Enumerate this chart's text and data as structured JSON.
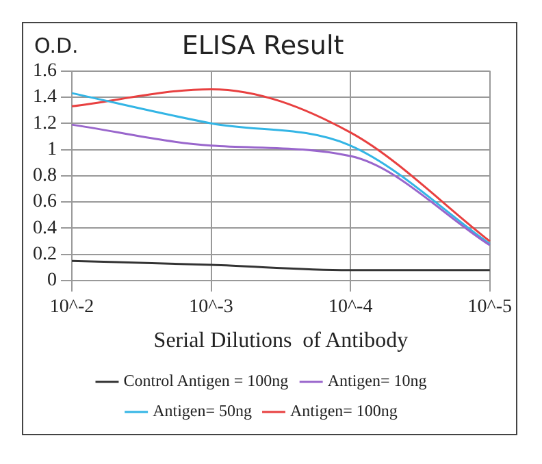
{
  "chart_data": {
    "type": "line",
    "title": "ELISA Result",
    "ylabel": "O.D.",
    "xlabel": "Serial Dilutions  of Antibody",
    "categories": [
      "10^-2",
      "10^-3",
      "10^-4",
      "10^-5"
    ],
    "series": [
      {
        "name": "Control Antigen = 100ng",
        "color": "#333333",
        "values": [
          0.15,
          0.12,
          0.08,
          0.08
        ]
      },
      {
        "name": "Antigen= 10ng",
        "color": "#9966cc",
        "values": [
          1.19,
          1.03,
          0.95,
          0.27
        ]
      },
      {
        "name": "Antigen= 50ng",
        "color": "#33b5e5",
        "values": [
          1.43,
          1.2,
          1.03,
          0.28
        ]
      },
      {
        "name": "Antigen= 100ng",
        "color": "#e84040",
        "values": [
          1.33,
          1.46,
          1.13,
          0.3
        ]
      }
    ],
    "ylim": [
      0,
      1.6
    ],
    "yticks": [
      0,
      0.2,
      0.4,
      0.6,
      0.8,
      1,
      1.2,
      1.4,
      1.6
    ],
    "grid": true,
    "legend": "bottom",
    "marker": "none",
    "line_style": "solid"
  }
}
